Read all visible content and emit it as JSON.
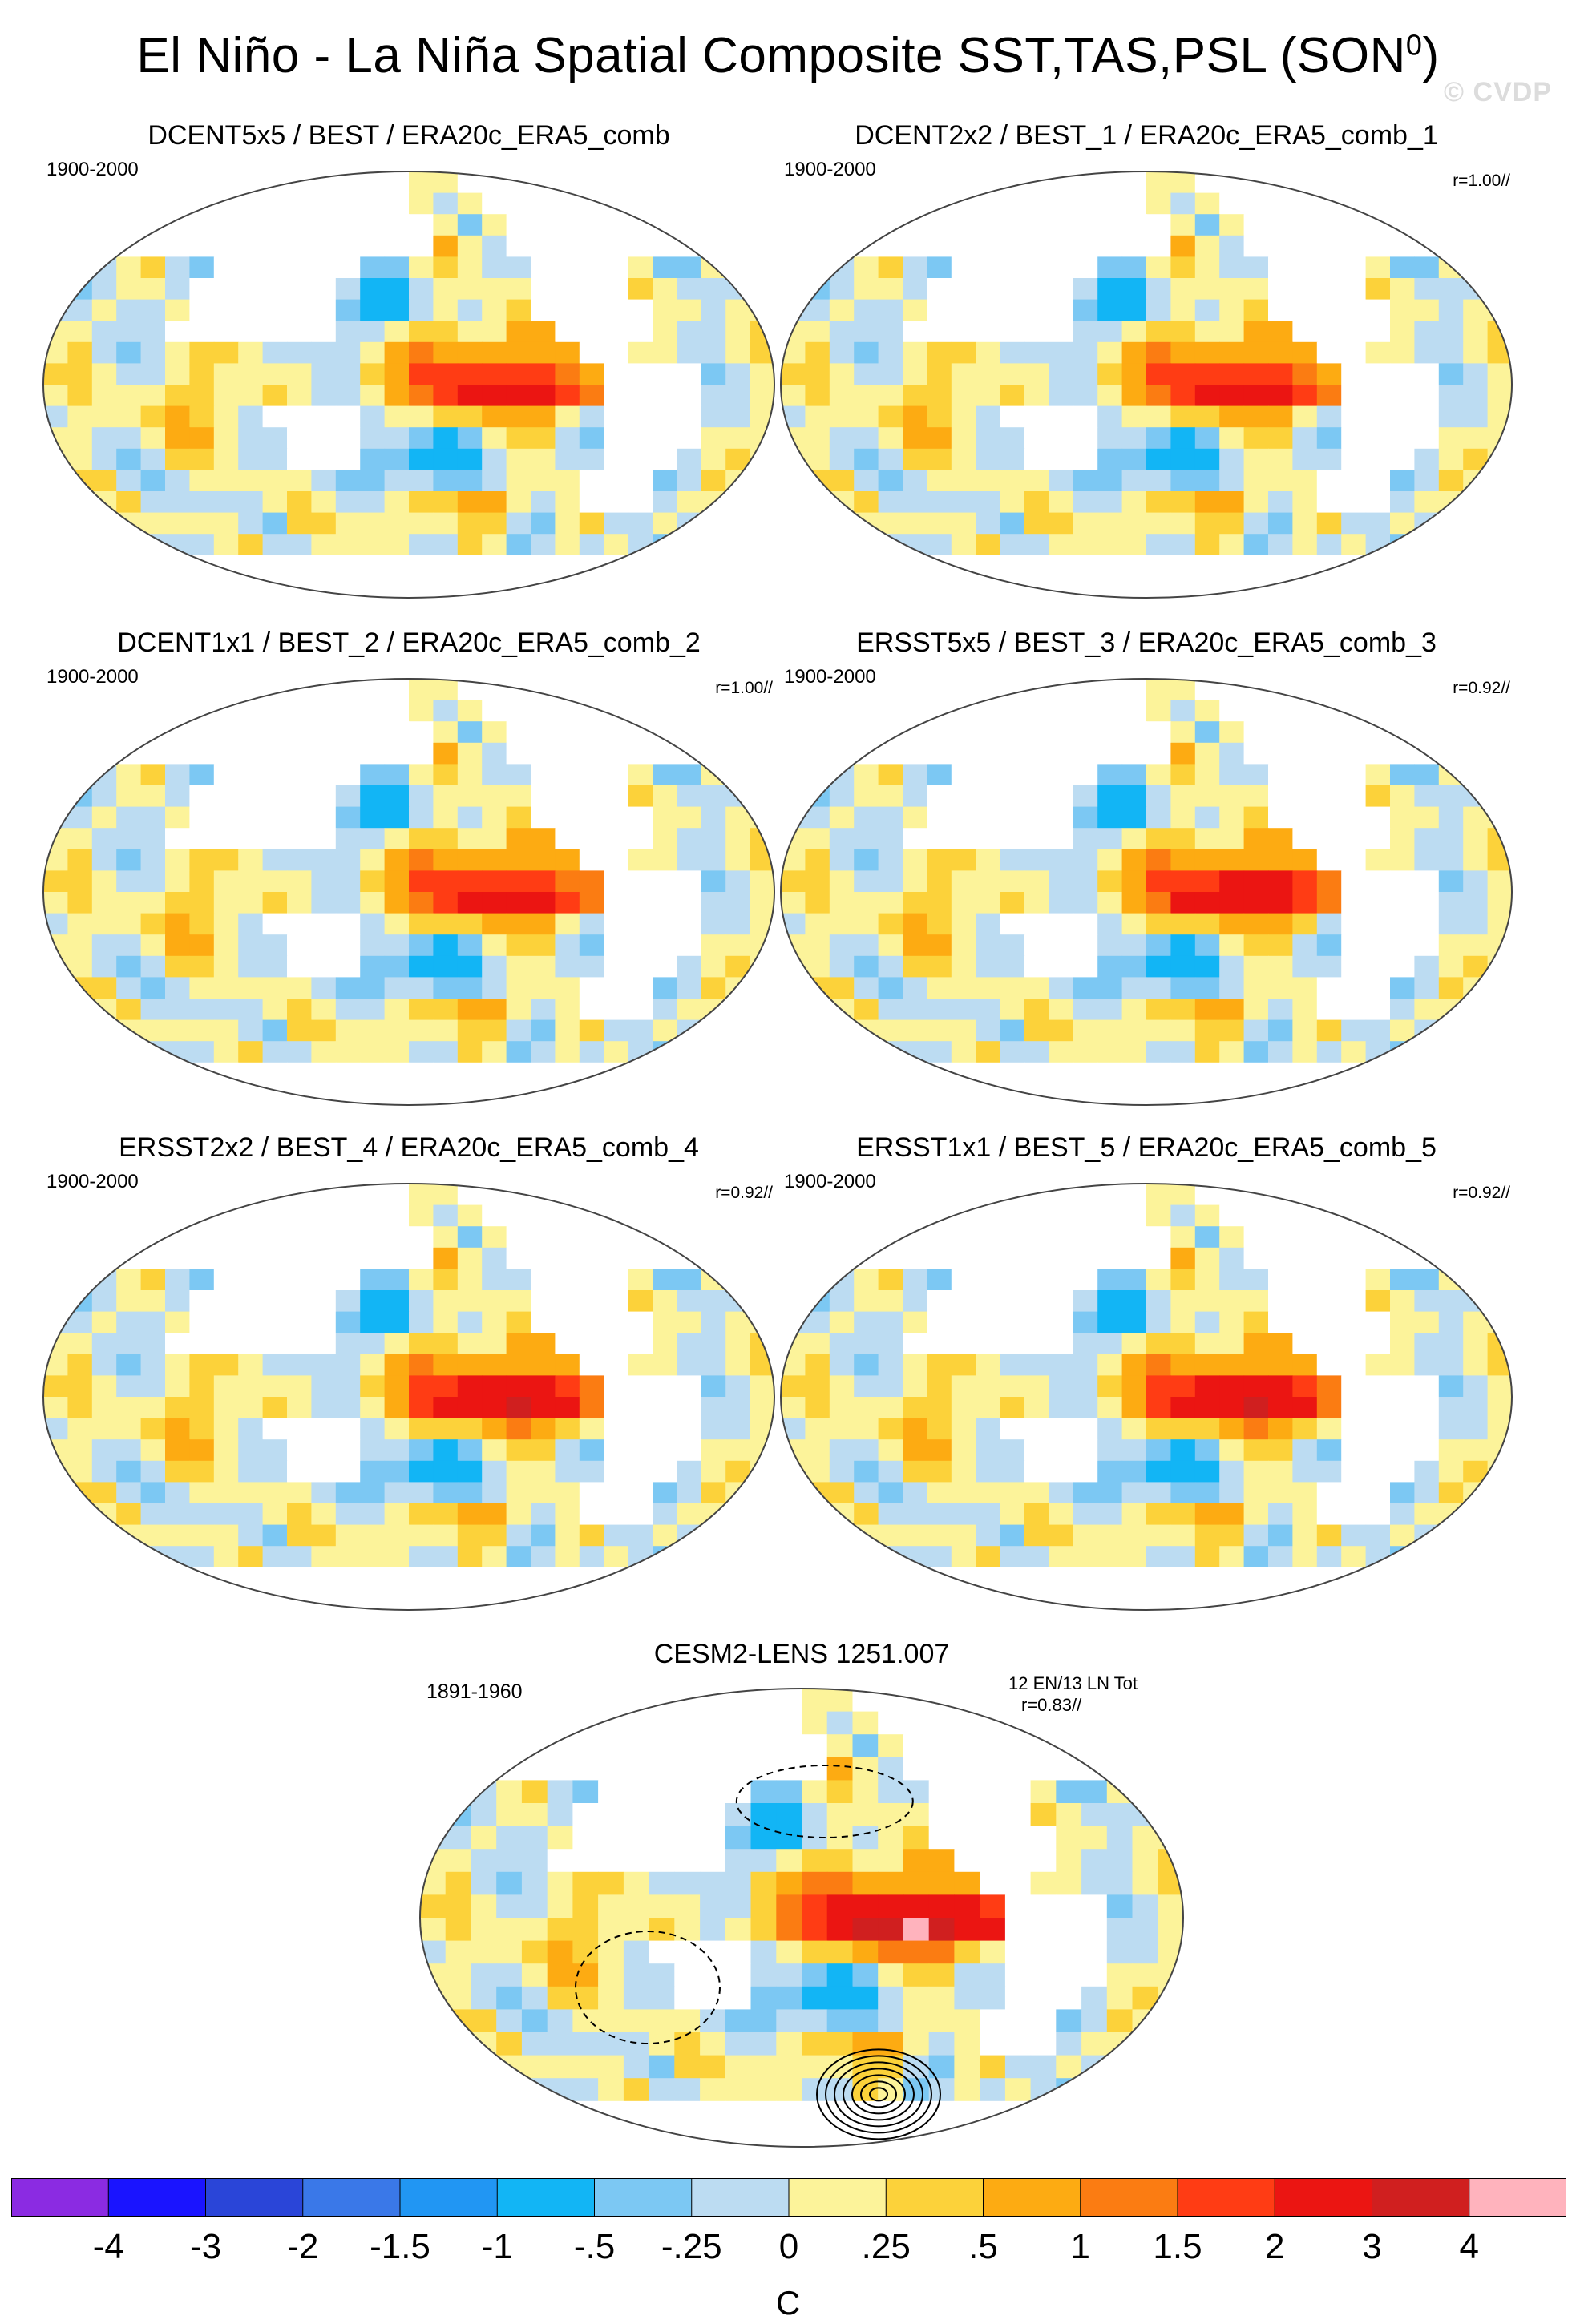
{
  "title": "El Niño - La Niña Spatial Composite SST,TAS,PSL (SON",
  "title_superscript": "0",
  "close_paren": ")",
  "watermark": "© CVDP",
  "chart_data": {
    "type": "map",
    "panels": [
      {
        "title": "DCENT5x5 / BEST / ERA20c_ERA5_comb",
        "period": "1900-2000",
        "r": "",
        "intensity": 0.8
      },
      {
        "title": "DCENT2x2 / BEST_1 / ERA20c_ERA5_comb_1",
        "period": "1900-2000",
        "r": "r=1.00//",
        "intensity": 0.8
      },
      {
        "title": "DCENT1x1 / BEST_2 / ERA20c_ERA5_comb_2",
        "period": "1900-2000",
        "r": "r=1.00//",
        "intensity": 0.85
      },
      {
        "title": "ERSST5x5 / BEST_3 / ERA20c_ERA5_comb_3",
        "period": "1900-2000",
        "r": "r=0.92//",
        "intensity": 1.0
      },
      {
        "title": "ERSST2x2 / BEST_4 / ERA20c_ERA5_comb_4",
        "period": "1900-2000",
        "r": "r=0.92//",
        "intensity": 1.05
      },
      {
        "title": "ERSST1x1 / BEST_5 / ERA20c_ERA5_comb_5",
        "period": "1900-2000",
        "r": "r=0.92//",
        "intensity": 1.05
      }
    ],
    "model_panel": {
      "title": "CESM2-LENS 1251.007",
      "period": "1891-1960",
      "events": "12 EN/13 LN Tot",
      "r": "r=0.83//",
      "intensity": 1.5
    },
    "colorbar": {
      "unit": "C",
      "tick_labels": [
        "-4",
        "-3",
        "-2",
        "-1.5",
        "-1",
        "-.5",
        "-.25",
        "0",
        ".25",
        ".5",
        "1",
        "1.5",
        "2",
        "3",
        "4"
      ],
      "colors": [
        "#8b2be2",
        "#1a14ff",
        "#2a45d8",
        "#3a78e8",
        "#2196f3",
        "#12b5f5",
        "#7cc8f3",
        "#bcdcf2",
        "#fcf39a",
        "#fcd23a",
        "#fdab12",
        "#fb7c12",
        "#ff3c14",
        "#eb1512",
        "#d01f1f",
        "#ffb3bd"
      ]
    }
  }
}
